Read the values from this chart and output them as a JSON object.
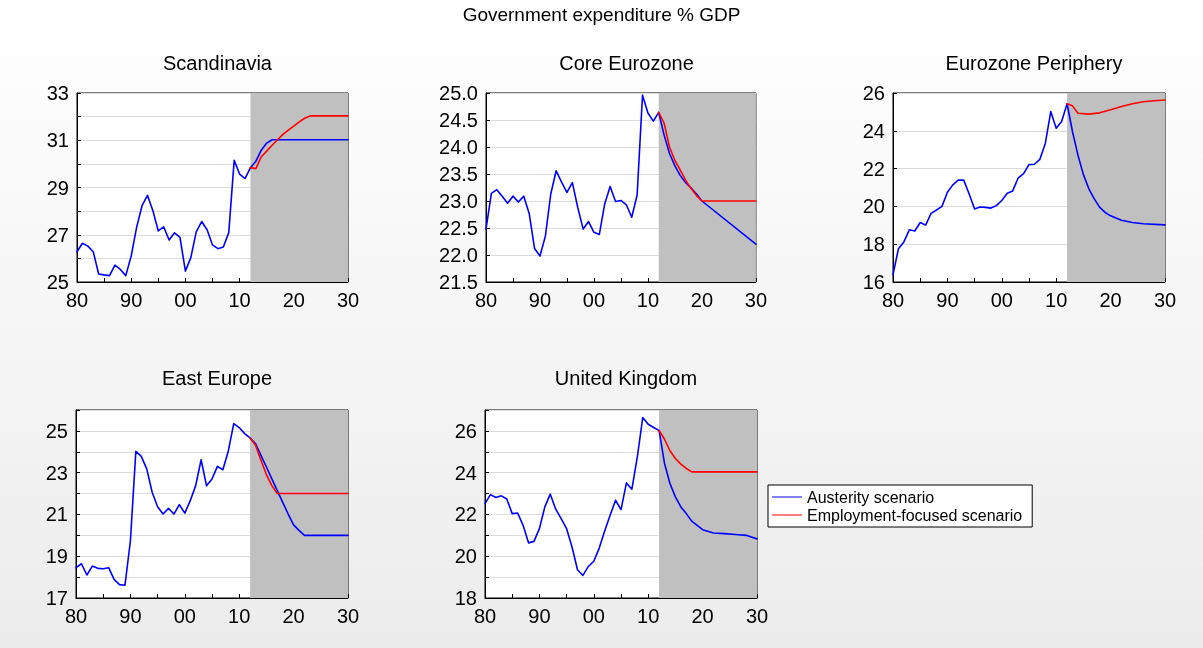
{
  "chart_data": [
    {
      "type": "other",
      "title": "Government expenditure % GDP"
    },
    {
      "type": "line",
      "title": "Scandinavia",
      "xlim": [
        1980,
        2030
      ],
      "xticks": [
        {
          "value": 1980,
          "label": "80"
        },
        {
          "value": 1985,
          "label": null
        },
        {
          "value": 1990,
          "label": "90"
        },
        {
          "value": 1995,
          "label": null
        },
        {
          "value": 2000,
          "label": "00"
        },
        {
          "value": 2005,
          "label": null
        },
        {
          "value": 2010,
          "label": "10"
        },
        {
          "value": 2015,
          "label": null
        },
        {
          "value": 2020,
          "label": "20"
        },
        {
          "value": 2025,
          "label": null
        },
        {
          "value": 2030,
          "label": "30"
        }
      ],
      "ylim": [
        25,
        33
      ],
      "yticks": [
        25,
        {
          "value": 26,
          "label": null
        },
        27,
        {
          "value": 28,
          "label": null
        },
        29,
        {
          "value": 30,
          "label": null
        },
        31,
        {
          "value": 32,
          "label": null
        },
        33
      ],
      "grid": "y",
      "legend": false,
      "marker": "none",
      "line_style": "solid",
      "bands": [
        {
          "axis": "x",
          "from": 2012,
          "to": 2030,
          "color": "#c0c0c0"
        }
      ],
      "series": [
        {
          "color": "#0000ff",
          "x": [
            1980,
            1981,
            1982,
            1983,
            1984,
            1985,
            1986,
            1987,
            1988,
            1989,
            1990,
            1991,
            1992,
            1993,
            1994,
            1995,
            1996,
            1997,
            1998,
            1999,
            2000,
            2001,
            2002,
            2003,
            2004,
            2005,
            2006,
            2007,
            2008,
            2009,
            2010,
            2011,
            2012,
            2013,
            2014,
            2015,
            2016,
            2030
          ],
          "values": [
            26.28,
            26.64,
            26.52,
            26.28,
            25.34,
            25.3,
            25.27,
            25.71,
            25.53,
            25.27,
            26.1,
            27.31,
            28.23,
            28.67,
            28.02,
            27.16,
            27.33,
            26.78,
            27.08,
            26.89,
            25.46,
            26.03,
            27.12,
            27.56,
            27.21,
            26.57,
            26.41,
            26.48,
            27.09,
            30.15,
            29.57,
            29.38,
            29.84,
            30.11,
            30.58,
            30.88,
            31.02,
            31.02
          ]
        },
        {
          "color": "#ff0000",
          "x": [
            2012,
            2013,
            2014,
            2015,
            2016,
            2017,
            2018,
            2019,
            2020,
            2021,
            2022,
            2023,
            2030
          ],
          "values": [
            29.84,
            29.8,
            30.3,
            30.54,
            30.79,
            31.02,
            31.25,
            31.43,
            31.6,
            31.78,
            31.93,
            32.03,
            32.03
          ]
        }
      ]
    },
    {
      "type": "line",
      "title": "Core Eurozone",
      "xlim": [
        1980,
        2030
      ],
      "xticks": [
        {
          "value": 1980,
          "label": "80"
        },
        {
          "value": 1985,
          "label": null
        },
        {
          "value": 1990,
          "label": "90"
        },
        {
          "value": 1995,
          "label": null
        },
        {
          "value": 2000,
          "label": "00"
        },
        {
          "value": 2005,
          "label": null
        },
        {
          "value": 2010,
          "label": "10"
        },
        {
          "value": 2015,
          "label": null
        },
        {
          "value": 2020,
          "label": "20"
        },
        {
          "value": 2025,
          "label": null
        },
        {
          "value": 2030,
          "label": "30"
        }
      ],
      "ylim": [
        21.5,
        25
      ],
      "yticks": [
        21.5,
        {
          "value": 22,
          "label": "22.0"
        },
        22.5,
        {
          "value": 23,
          "label": "23.0"
        },
        23.5,
        {
          "value": 24,
          "label": "24.0"
        },
        24.5,
        {
          "value": 25,
          "label": "25.0"
        }
      ],
      "grid": "y",
      "legend": false,
      "marker": "none",
      "line_style": "solid",
      "bands": [
        {
          "axis": "x",
          "from": 2012,
          "to": 2030,
          "color": "#c0c0c0"
        }
      ],
      "series": [
        {
          "color": "#0000ff",
          "x": [
            1980,
            1981,
            1982,
            1983,
            1984,
            1985,
            1986,
            1987,
            1988,
            1989,
            1990,
            1991,
            1992,
            1993,
            1994,
            1995,
            1996,
            1997,
            1998,
            1999,
            2000,
            2001,
            2002,
            2003,
            2004,
            2005,
            2006,
            2007,
            2008,
            2009,
            2010,
            2011,
            2012,
            2013,
            2014,
            2015,
            2016,
            2017,
            2018,
            2019,
            2020,
            2030
          ],
          "values": [
            22.48,
            23.14,
            23.21,
            23.09,
            22.96,
            23.09,
            22.98,
            23.09,
            22.77,
            22.12,
            21.98,
            22.35,
            23.13,
            23.56,
            23.35,
            23.16,
            23.34,
            22.88,
            22.48,
            22.62,
            22.42,
            22.38,
            22.95,
            23.27,
            22.99,
            23.01,
            22.93,
            22.7,
            23.11,
            24.96,
            24.63,
            24.48,
            24.64,
            24.22,
            23.88,
            23.65,
            23.47,
            23.34,
            23.24,
            23.13,
            23.0,
            22.2
          ]
        },
        {
          "color": "#ff0000",
          "x": [
            2012,
            2013,
            2014,
            2015,
            2016,
            2017,
            2018,
            2019,
            2020,
            2030
          ],
          "values": [
            24.64,
            24.44,
            24.0,
            23.75,
            23.57,
            23.38,
            23.23,
            23.1,
            23.0,
            23.0
          ]
        }
      ]
    },
    {
      "type": "line",
      "title": "Eurozone Periphery",
      "xlim": [
        1980,
        2030
      ],
      "xticks": [
        {
          "value": 1980,
          "label": "80"
        },
        {
          "value": 1985,
          "label": null
        },
        {
          "value": 1990,
          "label": "90"
        },
        {
          "value": 1995,
          "label": null
        },
        {
          "value": 2000,
          "label": "00"
        },
        {
          "value": 2005,
          "label": null
        },
        {
          "value": 2010,
          "label": "10"
        },
        {
          "value": 2015,
          "label": null
        },
        {
          "value": 2020,
          "label": "20"
        },
        {
          "value": 2025,
          "label": null
        },
        {
          "value": 2030,
          "label": "30"
        }
      ],
      "ylim": [
        16,
        26
      ],
      "yticks": [
        16,
        18,
        20,
        22,
        24,
        26
      ],
      "grid": "y",
      "legend": false,
      "marker": "none",
      "line_style": "solid",
      "bands": [
        {
          "axis": "x",
          "from": 2012,
          "to": 2030,
          "color": "#c0c0c0"
        }
      ],
      "series": [
        {
          "color": "#0000ff",
          "x": [
            1980,
            1981,
            1982,
            1983,
            1984,
            1985,
            1986,
            1987,
            1988,
            1989,
            1990,
            1991,
            1992,
            1993,
            1994,
            1995,
            1996,
            1997,
            1998,
            1999,
            2000,
            2001,
            2002,
            2003,
            2004,
            2005,
            2006,
            2007,
            2008,
            2009,
            2010,
            2011,
            2012,
            2013,
            2014,
            2015,
            2016,
            2017,
            2018,
            2019,
            2020,
            2022,
            2024,
            2026,
            2030
          ],
          "values": [
            16.39,
            17.76,
            18.12,
            18.76,
            18.7,
            19.15,
            19.01,
            19.63,
            19.81,
            20.0,
            20.75,
            21.14,
            21.39,
            21.39,
            20.66,
            19.86,
            19.97,
            19.95,
            19.91,
            20.04,
            20.31,
            20.7,
            20.82,
            21.5,
            21.73,
            22.21,
            22.23,
            22.49,
            23.33,
            25.02,
            24.13,
            24.49,
            25.43,
            23.95,
            22.71,
            21.68,
            20.93,
            20.4,
            19.95,
            19.68,
            19.5,
            19.27,
            19.15,
            19.08,
            19.02
          ]
        },
        {
          "color": "#ff0000",
          "x": [
            2012,
            2013,
            2014,
            2016,
            2018,
            2020,
            2022,
            2024,
            2026,
            2028,
            2030
          ],
          "values": [
            25.43,
            25.32,
            24.93,
            24.88,
            24.95,
            25.11,
            25.29,
            25.43,
            25.54,
            25.59,
            25.63
          ]
        }
      ]
    },
    {
      "type": "line",
      "title": "East Europe",
      "xlim": [
        1980,
        2030
      ],
      "xticks": [
        {
          "value": 1980,
          "label": "80"
        },
        {
          "value": 1985,
          "label": null
        },
        {
          "value": 1990,
          "label": "90"
        },
        {
          "value": 1995,
          "label": null
        },
        {
          "value": 2000,
          "label": "00"
        },
        {
          "value": 2005,
          "label": null
        },
        {
          "value": 2010,
          "label": "10"
        },
        {
          "value": 2015,
          "label": null
        },
        {
          "value": 2020,
          "label": "20"
        },
        {
          "value": 2025,
          "label": null
        },
        {
          "value": 2030,
          "label": "30"
        }
      ],
      "ylim": [
        17,
        26
      ],
      "yticks": [
        17,
        {
          "value": 18,
          "label": null
        },
        19,
        {
          "value": 20,
          "label": null
        },
        21,
        {
          "value": 22,
          "label": null
        },
        23,
        {
          "value": 24,
          "label": null
        },
        25,
        {
          "value": 26,
          "label": null
        }
      ],
      "grid": "y",
      "legend": false,
      "marker": "none",
      "line_style": "solid",
      "bands": [
        {
          "axis": "x",
          "from": 2012,
          "to": 2030,
          "color": "#c0c0c0"
        }
      ],
      "series": [
        {
          "color": "#0000ff",
          "x": [
            1980,
            1981,
            1982,
            1983,
            1984,
            1985,
            1986,
            1987,
            1988,
            1989,
            1990,
            1991,
            1992,
            1993,
            1994,
            1995,
            1996,
            1997,
            1998,
            1999,
            2000,
            2001,
            2002,
            2003,
            2004,
            2005,
            2006,
            2007,
            2008,
            2009,
            2010,
            2011,
            2012,
            2013,
            2014,
            2015,
            2016,
            2017,
            2018,
            2019,
            2020,
            2021,
            2022,
            2030
          ],
          "values": [
            18.45,
            18.64,
            18.1,
            18.53,
            18.42,
            18.4,
            18.45,
            17.89,
            17.64,
            17.61,
            19.73,
            24.02,
            23.78,
            23.18,
            22.06,
            21.37,
            21.02,
            21.29,
            21.02,
            21.47,
            21.06,
            21.66,
            22.38,
            23.62,
            22.37,
            22.7,
            23.3,
            23.14,
            24.04,
            25.35,
            25.16,
            24.87,
            24.66,
            24.39,
            23.83,
            23.27,
            22.7,
            22.14,
            21.58,
            21.02,
            20.5,
            20.24,
            20.0,
            20.0
          ]
        },
        {
          "color": "#ff0000",
          "x": [
            2012,
            2013,
            2014,
            2015,
            2016,
            2017,
            2030
          ],
          "values": [
            24.66,
            24.31,
            23.59,
            22.91,
            22.38,
            22.0,
            22.0
          ]
        }
      ]
    },
    {
      "type": "line",
      "title": "United Kingdom",
      "xlim": [
        1980,
        2030
      ],
      "xticks": [
        {
          "value": 1980,
          "label": "80"
        },
        {
          "value": 1985,
          "label": null
        },
        {
          "value": 1990,
          "label": "90"
        },
        {
          "value": 1995,
          "label": null
        },
        {
          "value": 2000,
          "label": "00"
        },
        {
          "value": 2005,
          "label": null
        },
        {
          "value": 2010,
          "label": "10"
        },
        {
          "value": 2015,
          "label": null
        },
        {
          "value": 2020,
          "label": "20"
        },
        {
          "value": 2025,
          "label": null
        },
        {
          "value": 2030,
          "label": "30"
        }
      ],
      "ylim": [
        18,
        27
      ],
      "yticks": [
        18,
        {
          "value": 19,
          "label": null
        },
        20,
        {
          "value": 21,
          "label": null
        },
        22,
        {
          "value": 23,
          "label": null
        },
        24,
        {
          "value": 25,
          "label": null
        },
        26,
        {
          "value": 27,
          "label": null
        }
      ],
      "grid": "y",
      "legend": "right",
      "marker": "none",
      "line_style": "solid",
      "bands": [
        {
          "axis": "x",
          "from": 2012,
          "to": 2030,
          "color": "#c0c0c0"
        }
      ],
      "series": [
        {
          "name": "Austerity scenario",
          "color": "#0000ff",
          "x": [
            1980,
            1981,
            1982,
            1983,
            1984,
            1985,
            1986,
            1987,
            1988,
            1989,
            1990,
            1991,
            1992,
            1993,
            1994,
            1995,
            1996,
            1997,
            1998,
            1999,
            2000,
            2001,
            2002,
            2003,
            2004,
            2005,
            2006,
            2007,
            2008,
            2009,
            2010,
            2011,
            2012,
            2013,
            2014,
            2015,
            2016,
            2017,
            2018,
            2019,
            2020,
            2022,
            2024,
            2026,
            2028,
            2030
          ],
          "values": [
            22.52,
            22.95,
            22.81,
            22.89,
            22.74,
            22.04,
            22.07,
            21.48,
            20.64,
            20.71,
            21.32,
            22.36,
            22.97,
            22.25,
            21.8,
            21.32,
            20.44,
            19.35,
            19.08,
            19.51,
            19.76,
            20.39,
            21.21,
            21.96,
            22.68,
            22.23,
            23.51,
            23.21,
            24.76,
            26.64,
            26.32,
            26.16,
            26.02,
            24.44,
            23.48,
            22.84,
            22.36,
            22.04,
            21.68,
            21.48,
            21.27,
            21.11,
            21.08,
            21.04,
            21.0,
            20.83
          ]
        },
        {
          "name": "Employment-focused scenario",
          "color": "#ff0000",
          "x": [
            2012,
            2013,
            2014,
            2015,
            2016,
            2017,
            2018,
            2030
          ],
          "values": [
            26.02,
            25.6,
            25.05,
            24.68,
            24.41,
            24.2,
            24.04,
            24.04
          ]
        }
      ]
    }
  ]
}
